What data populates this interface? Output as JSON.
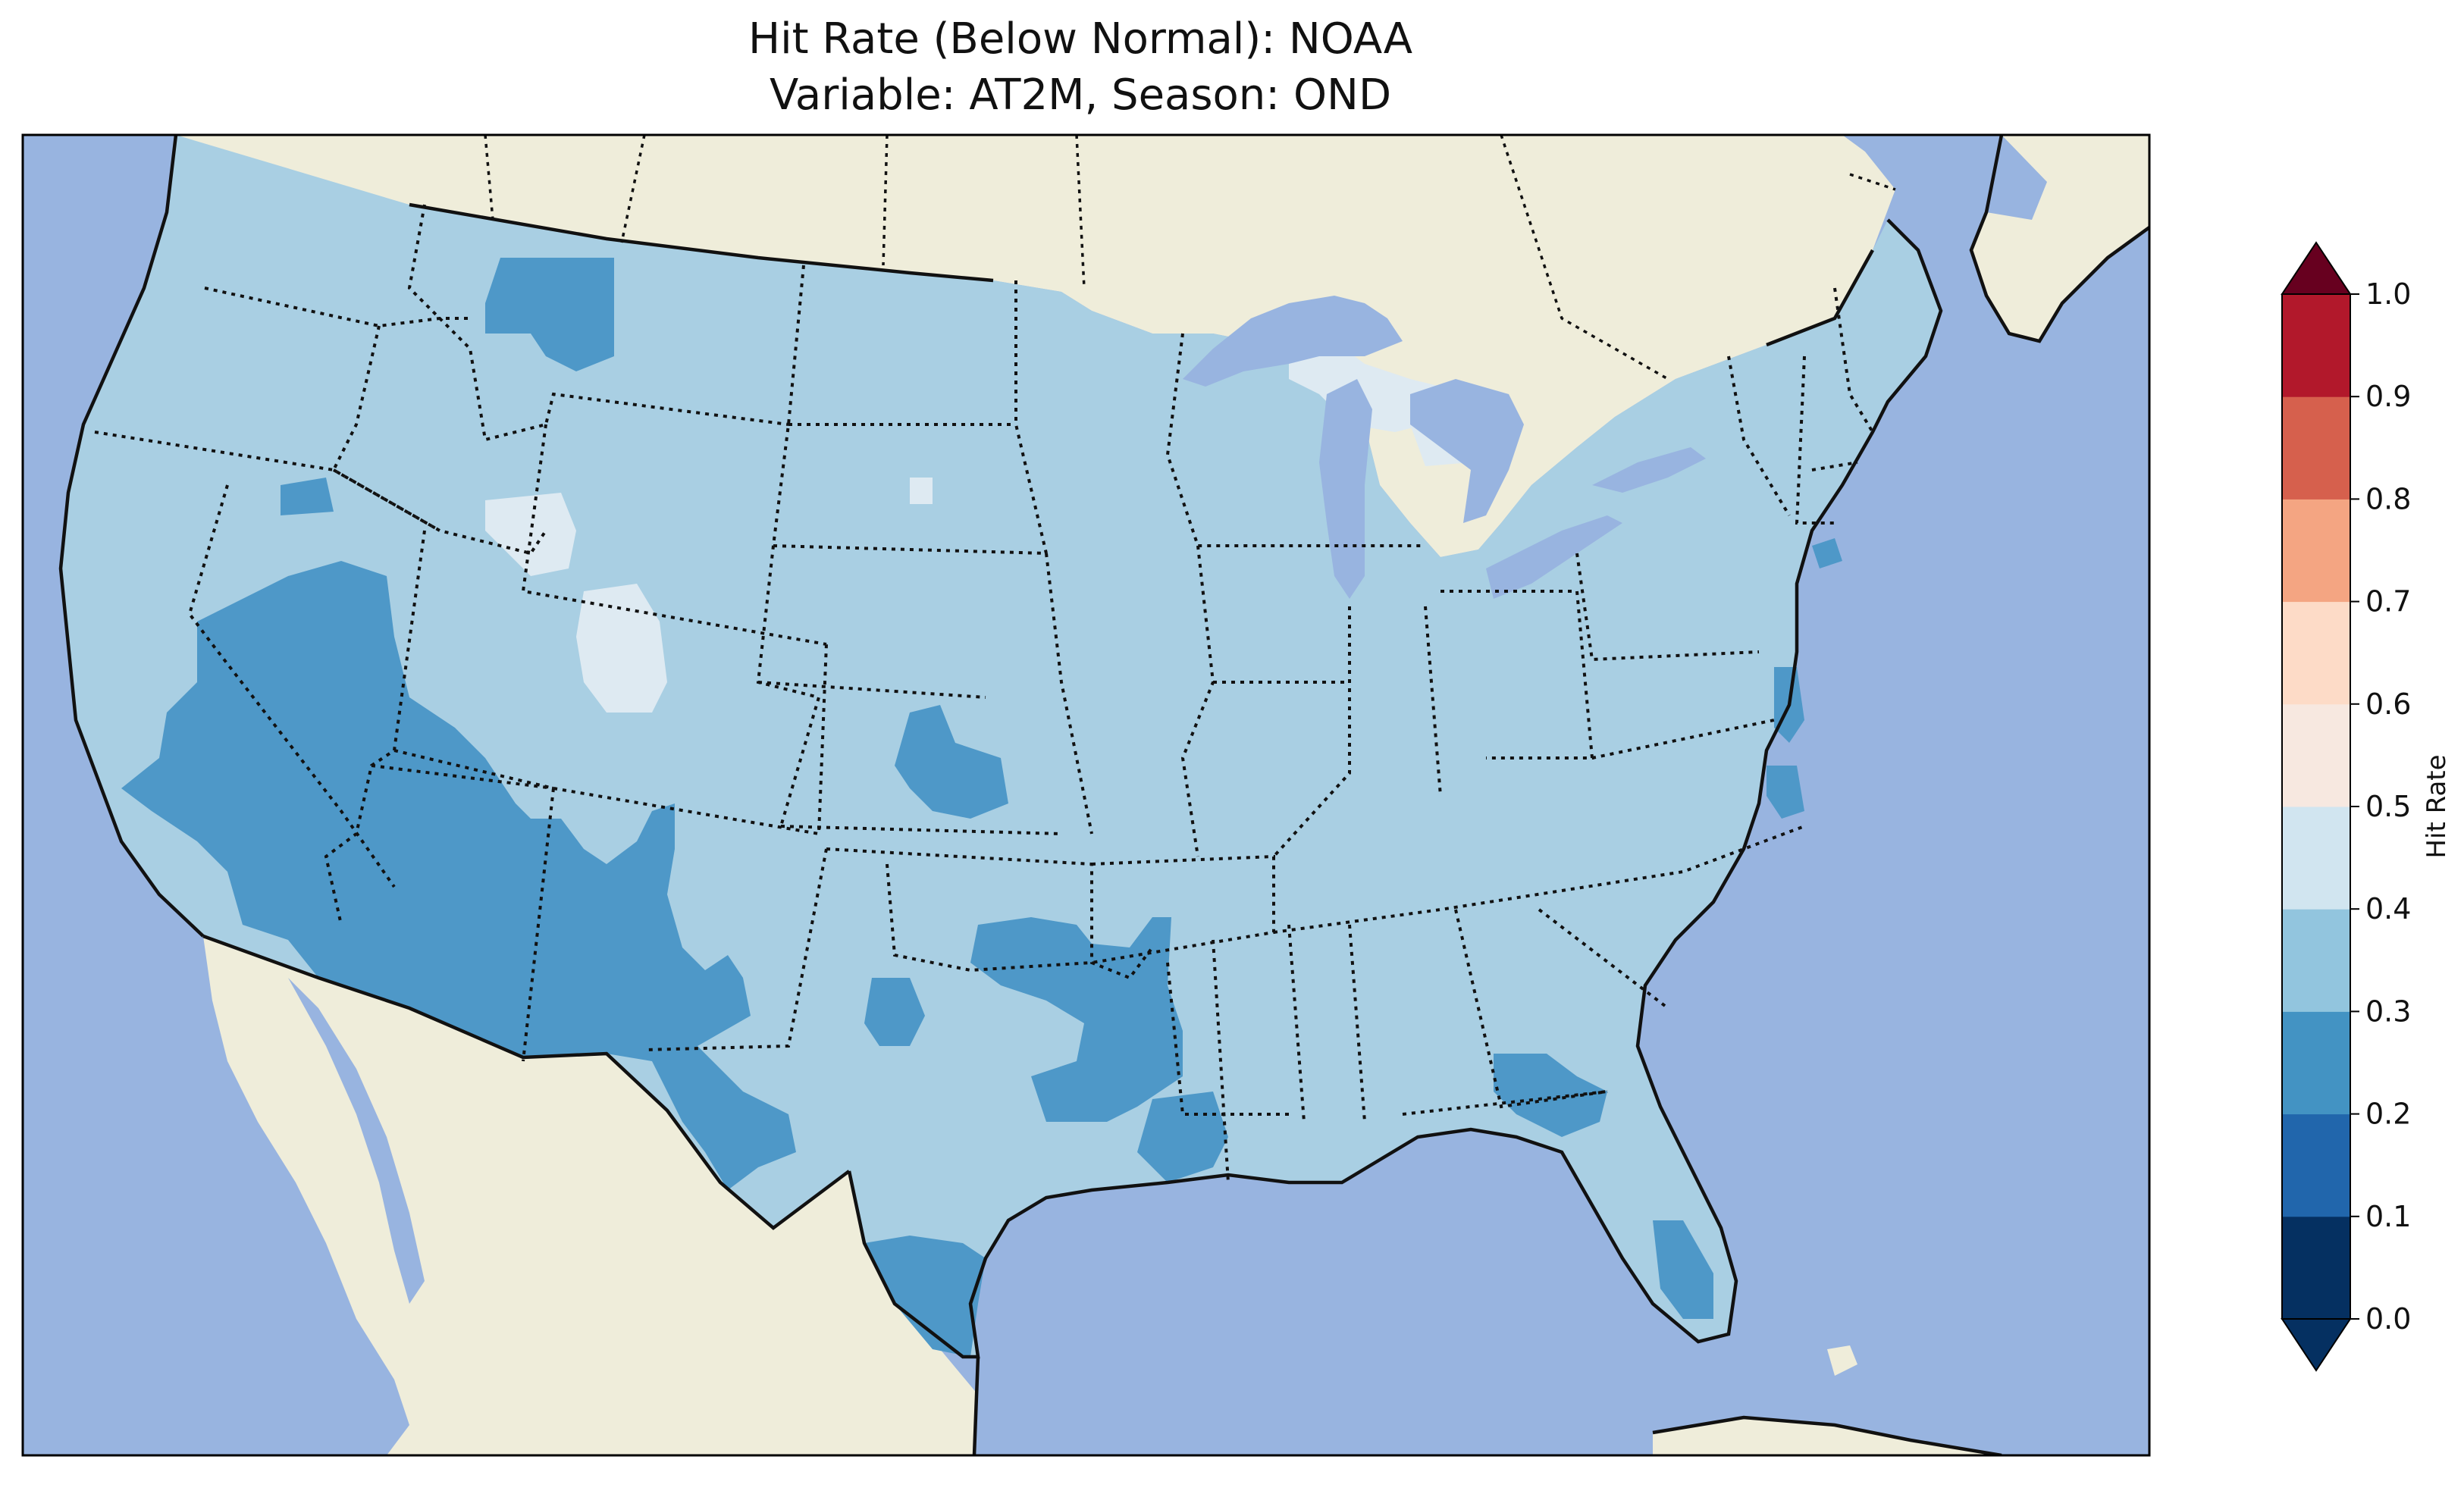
{
  "title": {
    "line1": "Hit Rate (Below Normal): NOAA",
    "line2": "Variable: AT2M, Season: OND"
  },
  "colorbar": {
    "label": "Hit Rate",
    "ticks": [
      "0.0",
      "0.1",
      "0.2",
      "0.3",
      "0.4",
      "0.5",
      "0.6",
      "0.7",
      "0.8",
      "0.9",
      "1.0"
    ],
    "colors": [
      "#053061",
      "#2166ac",
      "#4393c3",
      "#92c5de",
      "#d1e5f0",
      "#f7f7f7",
      "#fddbc7",
      "#f4a582",
      "#d6604d",
      "#b2182b",
      "#67001f"
    ],
    "under_color": "#053061",
    "over_color": "#67001f"
  },
  "map_colors": {
    "ocean": "#98b4e0",
    "land": "#efedda",
    "class_03_04": "#a9cfe3",
    "class_02_03": "#4e98c8",
    "class_04_05": "#deeaf2"
  }
}
